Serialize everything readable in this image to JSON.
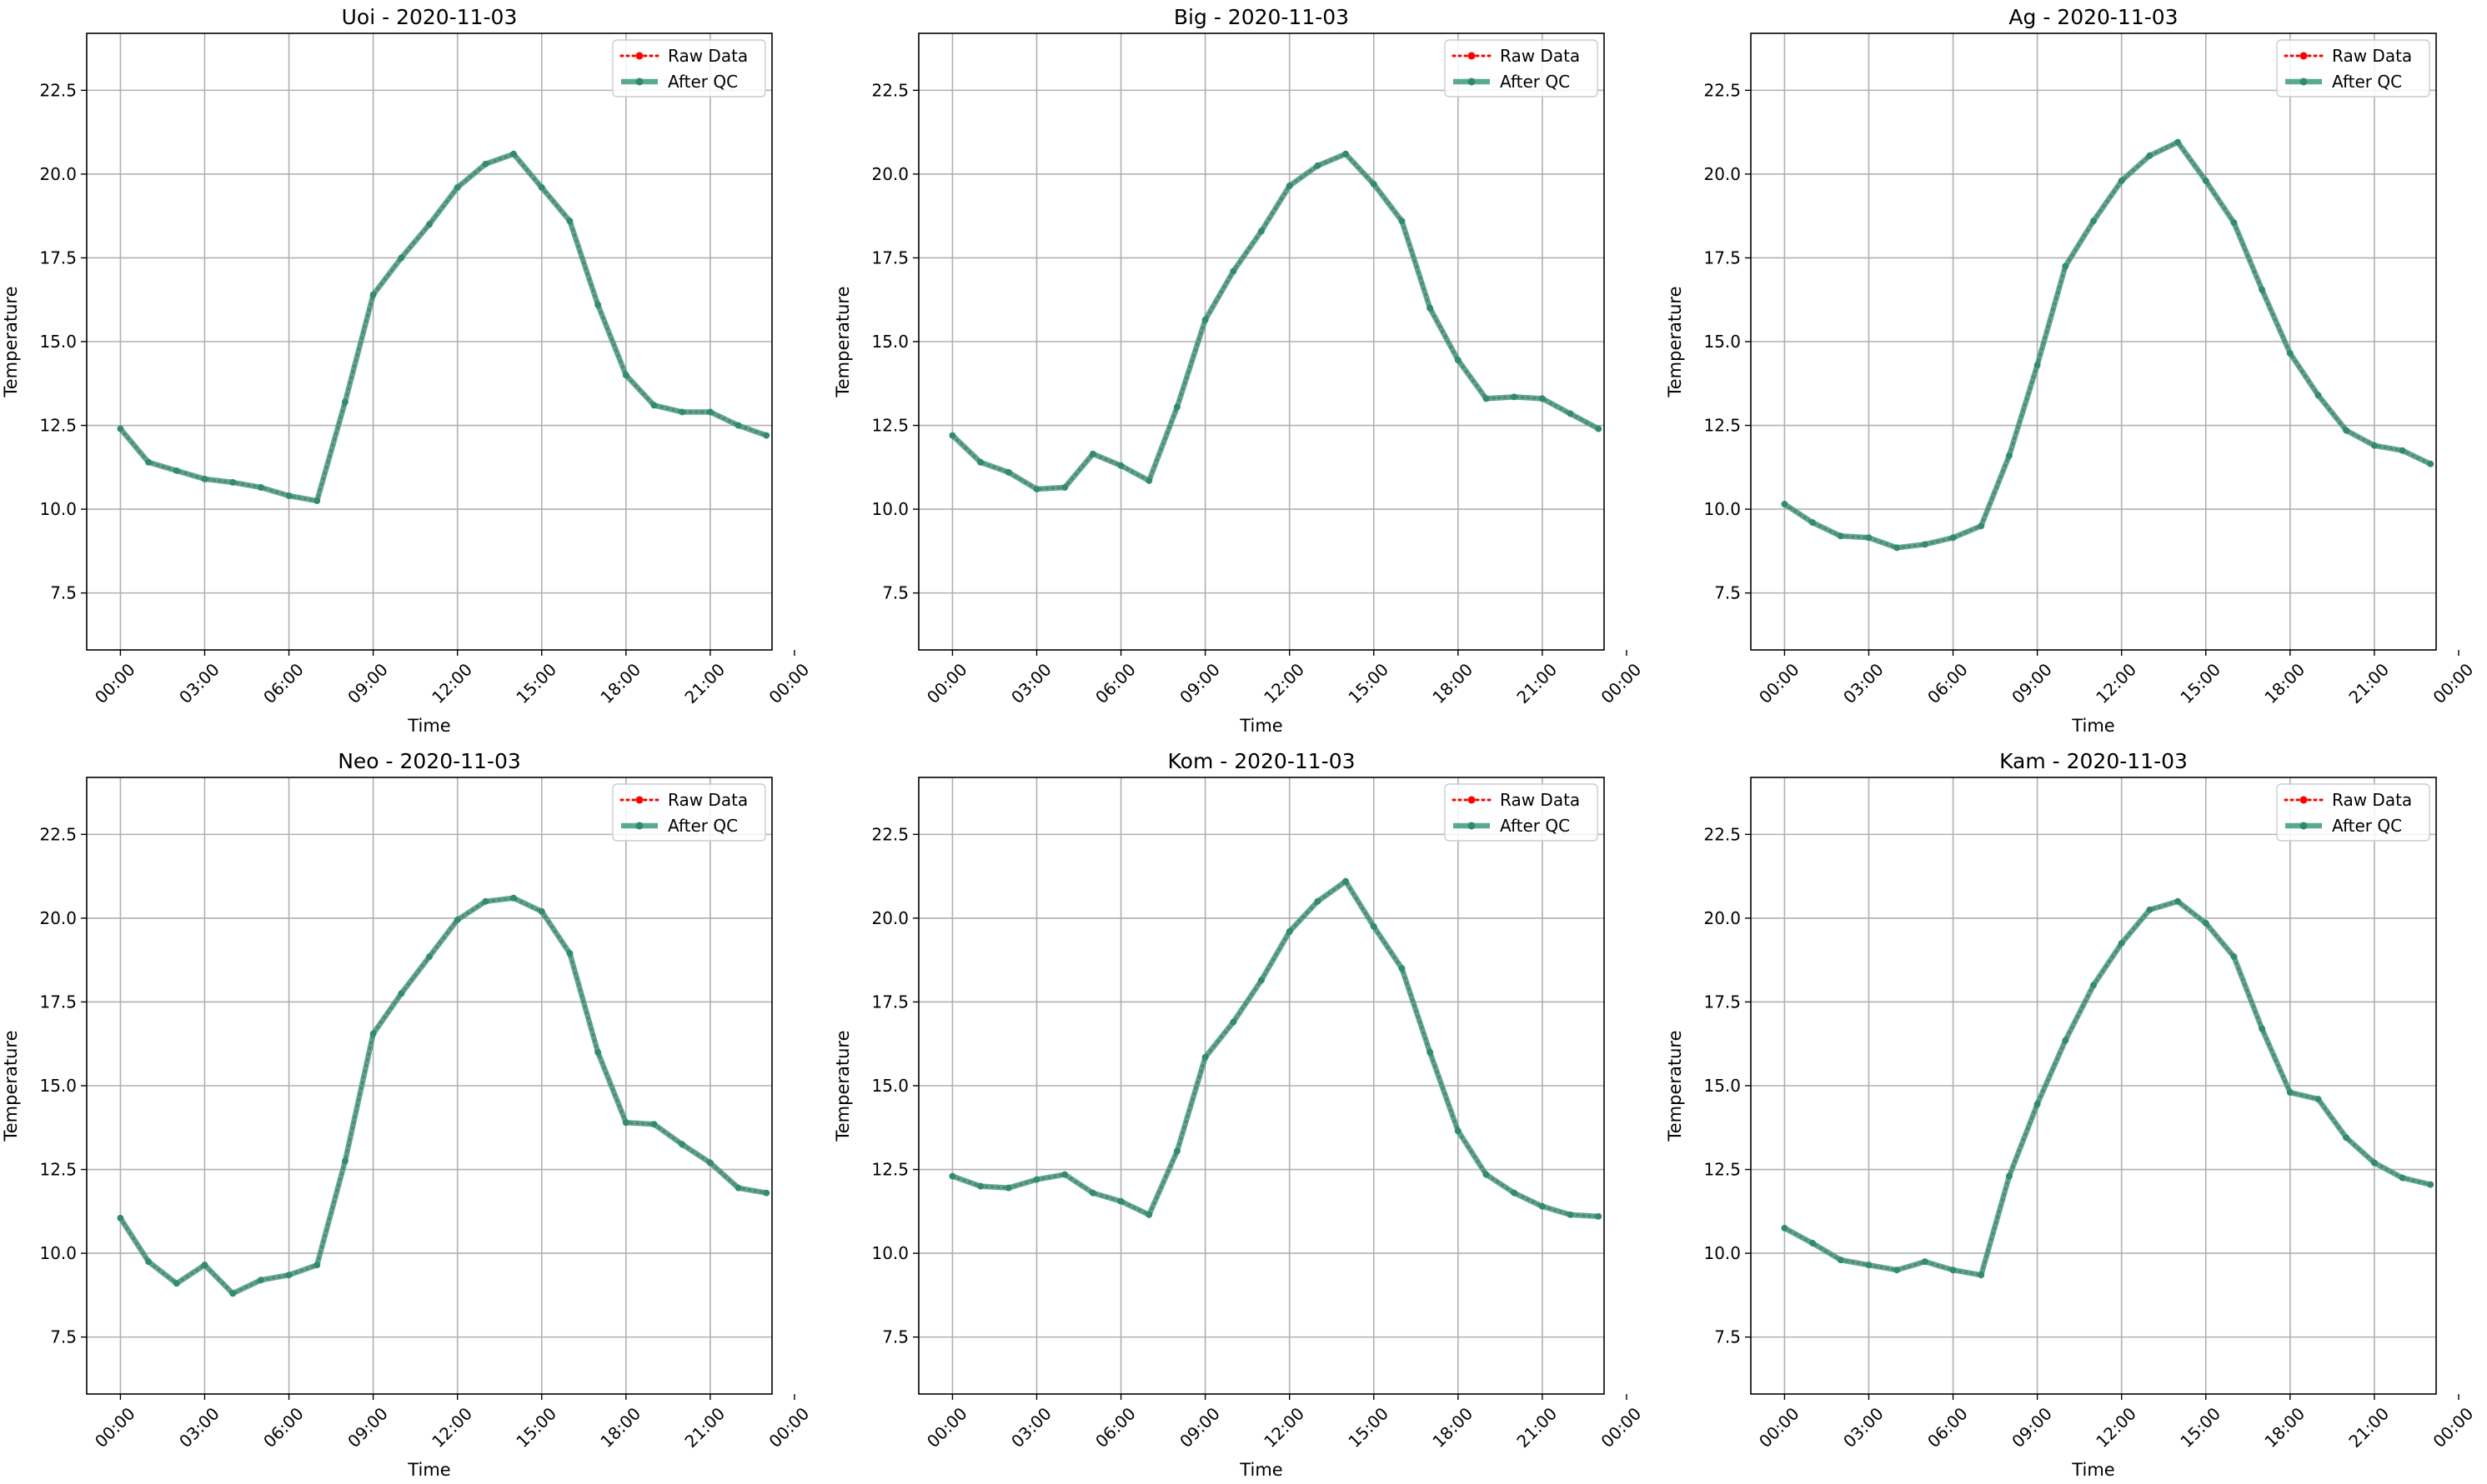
{
  "colors": {
    "raw": "#ff0000",
    "qc": "#2e8b72",
    "qc_line": "#3f9a7f",
    "grid": "#b0b0b0",
    "axis": "#000000"
  },
  "chart_data": [
    {
      "type": "line",
      "title": "Uoi - 2020-11-03",
      "xlabel": "Time",
      "ylabel": "Temperature",
      "ylim": [
        5.8,
        24.2
      ],
      "xlim": [
        -1.2,
        23.2
      ],
      "xticks": [
        0,
        3,
        6,
        9,
        12,
        15,
        18,
        21,
        24
      ],
      "xtick_labels": [
        "00:00",
        "03:00",
        "06:00",
        "09:00",
        "12:00",
        "15:00",
        "18:00",
        "21:00",
        "00:00"
      ],
      "yticks": [
        7.5,
        10.0,
        12.5,
        15.0,
        17.5,
        20.0,
        22.5
      ],
      "ytick_labels": [
        "7.5",
        "10.0",
        "12.5",
        "15.0",
        "17.5",
        "20.0",
        "22.5"
      ],
      "grid": true,
      "legend": "upper right",
      "x": [
        0,
        1,
        2,
        3,
        4,
        5,
        6,
        7,
        8,
        9,
        10,
        11,
        12,
        13,
        14,
        15,
        16,
        17,
        18,
        19,
        20,
        21,
        22,
        23
      ],
      "series": [
        {
          "name": "Raw Data",
          "style": "dotted",
          "values": [
            12.4,
            11.4,
            11.15,
            10.9,
            10.8,
            10.65,
            10.4,
            10.25,
            13.2,
            16.4,
            17.5,
            18.5,
            19.6,
            20.3,
            20.6,
            19.6,
            18.6,
            16.1,
            14.0,
            13.1,
            12.9,
            12.9,
            12.5,
            12.2
          ]
        },
        {
          "name": "After QC",
          "style": "solid",
          "values": [
            12.4,
            11.4,
            11.15,
            10.9,
            10.8,
            10.65,
            10.4,
            10.25,
            13.2,
            16.4,
            17.5,
            18.5,
            19.6,
            20.3,
            20.6,
            19.6,
            18.6,
            16.1,
            14.0,
            13.1,
            12.9,
            12.9,
            12.5,
            12.2
          ]
        }
      ]
    },
    {
      "type": "line",
      "title": "Big - 2020-11-03",
      "xlabel": "Time",
      "ylabel": "Temperature",
      "ylim": [
        5.8,
        24.2
      ],
      "xlim": [
        -1.2,
        23.2
      ],
      "xticks": [
        0,
        3,
        6,
        9,
        12,
        15,
        18,
        21,
        24
      ],
      "xtick_labels": [
        "00:00",
        "03:00",
        "06:00",
        "09:00",
        "12:00",
        "15:00",
        "18:00",
        "21:00",
        "00:00"
      ],
      "yticks": [
        7.5,
        10.0,
        12.5,
        15.0,
        17.5,
        20.0,
        22.5
      ],
      "ytick_labels": [
        "7.5",
        "10.0",
        "12.5",
        "15.0",
        "17.5",
        "20.0",
        "22.5"
      ],
      "grid": true,
      "legend": "upper right",
      "x": [
        0,
        1,
        2,
        3,
        4,
        5,
        6,
        7,
        8,
        9,
        10,
        11,
        12,
        13,
        14,
        15,
        16,
        17,
        18,
        19,
        20,
        21,
        22,
        23
      ],
      "series": [
        {
          "name": "Raw Data",
          "style": "dotted",
          "values": [
            12.2,
            11.4,
            11.1,
            10.6,
            10.65,
            11.65,
            11.3,
            10.85,
            13.05,
            15.65,
            17.1,
            18.3,
            19.65,
            20.25,
            20.6,
            19.7,
            18.6,
            16.0,
            14.45,
            13.3,
            13.35,
            13.3,
            12.85,
            12.4
          ]
        },
        {
          "name": "After QC",
          "style": "solid",
          "values": [
            12.2,
            11.4,
            11.1,
            10.6,
            10.65,
            11.65,
            11.3,
            10.85,
            13.05,
            15.65,
            17.1,
            18.3,
            19.65,
            20.25,
            20.6,
            19.7,
            18.6,
            16.0,
            14.45,
            13.3,
            13.35,
            13.3,
            12.85,
            12.4
          ]
        }
      ]
    },
    {
      "type": "line",
      "title": "Ag - 2020-11-03",
      "xlabel": "Time",
      "ylabel": "Temperature",
      "ylim": [
        5.8,
        24.2
      ],
      "xlim": [
        -1.2,
        23.2
      ],
      "xticks": [
        0,
        3,
        6,
        9,
        12,
        15,
        18,
        21,
        24
      ],
      "xtick_labels": [
        "00:00",
        "03:00",
        "06:00",
        "09:00",
        "12:00",
        "15:00",
        "18:00",
        "21:00",
        "00:00"
      ],
      "yticks": [
        7.5,
        10.0,
        12.5,
        15.0,
        17.5,
        20.0,
        22.5
      ],
      "ytick_labels": [
        "7.5",
        "10.0",
        "12.5",
        "15.0",
        "17.5",
        "20.0",
        "22.5"
      ],
      "grid": true,
      "legend": "upper right",
      "x": [
        0,
        1,
        2,
        3,
        4,
        5,
        6,
        7,
        8,
        9,
        10,
        11,
        12,
        13,
        14,
        15,
        16,
        17,
        18,
        19,
        20,
        21,
        22,
        23
      ],
      "series": [
        {
          "name": "Raw Data",
          "style": "dotted",
          "values": [
            10.15,
            9.6,
            9.2,
            9.15,
            8.85,
            8.95,
            9.15,
            9.5,
            11.6,
            14.3,
            17.25,
            18.6,
            19.8,
            20.55,
            20.95,
            19.8,
            18.55,
            16.55,
            14.65,
            13.4,
            12.35,
            11.9,
            11.75,
            11.35
          ]
        },
        {
          "name": "After QC",
          "style": "solid",
          "values": [
            10.15,
            9.6,
            9.2,
            9.15,
            8.85,
            8.95,
            9.15,
            9.5,
            11.6,
            14.3,
            17.25,
            18.6,
            19.8,
            20.55,
            20.95,
            19.8,
            18.55,
            16.55,
            14.65,
            13.4,
            12.35,
            11.9,
            11.75,
            11.35
          ]
        }
      ]
    },
    {
      "type": "line",
      "title": "Neo - 2020-11-03",
      "xlabel": "Time",
      "ylabel": "Temperature",
      "ylim": [
        5.8,
        24.2
      ],
      "xlim": [
        -1.2,
        23.2
      ],
      "xticks": [
        0,
        3,
        6,
        9,
        12,
        15,
        18,
        21,
        24
      ],
      "xtick_labels": [
        "00:00",
        "03:00",
        "06:00",
        "09:00",
        "12:00",
        "15:00",
        "18:00",
        "21:00",
        "00:00"
      ],
      "yticks": [
        7.5,
        10.0,
        12.5,
        15.0,
        17.5,
        20.0,
        22.5
      ],
      "ytick_labels": [
        "7.5",
        "10.0",
        "12.5",
        "15.0",
        "17.5",
        "20.0",
        "22.5"
      ],
      "grid": true,
      "legend": "upper right",
      "x": [
        0,
        1,
        2,
        3,
        4,
        5,
        6,
        7,
        8,
        9,
        10,
        11,
        12,
        13,
        14,
        15,
        16,
        17,
        18,
        19,
        20,
        21,
        22,
        23
      ],
      "series": [
        {
          "name": "Raw Data",
          "style": "dotted",
          "values": [
            11.05,
            9.75,
            9.1,
            9.65,
            8.8,
            9.2,
            9.35,
            9.65,
            12.75,
            16.55,
            17.75,
            18.85,
            19.95,
            20.5,
            20.6,
            20.2,
            18.95,
            16.0,
            13.9,
            13.85,
            13.25,
            12.7,
            11.95,
            11.8
          ]
        },
        {
          "name": "After QC",
          "style": "solid",
          "values": [
            11.05,
            9.75,
            9.1,
            9.65,
            8.8,
            9.2,
            9.35,
            9.65,
            12.75,
            16.55,
            17.75,
            18.85,
            19.95,
            20.5,
            20.6,
            20.2,
            18.95,
            16.0,
            13.9,
            13.85,
            13.25,
            12.7,
            11.95,
            11.8
          ]
        }
      ]
    },
    {
      "type": "line",
      "title": "Kom - 2020-11-03",
      "xlabel": "Time",
      "ylabel": "Temperature",
      "ylim": [
        5.8,
        24.2
      ],
      "xlim": [
        -1.2,
        23.2
      ],
      "xticks": [
        0,
        3,
        6,
        9,
        12,
        15,
        18,
        21,
        24
      ],
      "xtick_labels": [
        "00:00",
        "03:00",
        "06:00",
        "09:00",
        "12:00",
        "15:00",
        "18:00",
        "21:00",
        "00:00"
      ],
      "yticks": [
        7.5,
        10.0,
        12.5,
        15.0,
        17.5,
        20.0,
        22.5
      ],
      "ytick_labels": [
        "7.5",
        "10.0",
        "12.5",
        "15.0",
        "17.5",
        "20.0",
        "22.5"
      ],
      "grid": true,
      "legend": "upper right",
      "x": [
        0,
        1,
        2,
        3,
        4,
        5,
        6,
        7,
        8,
        9,
        10,
        11,
        12,
        13,
        14,
        15,
        16,
        17,
        18,
        19,
        20,
        21,
        22,
        23
      ],
      "series": [
        {
          "name": "Raw Data",
          "style": "dotted",
          "values": [
            12.3,
            12.0,
            11.95,
            12.2,
            12.35,
            11.8,
            11.55,
            11.15,
            13.05,
            15.85,
            16.9,
            18.15,
            19.6,
            20.5,
            21.1,
            19.75,
            18.5,
            16.0,
            13.65,
            12.35,
            11.8,
            11.4,
            11.15,
            11.1
          ]
        },
        {
          "name": "After QC",
          "style": "solid",
          "values": [
            12.3,
            12.0,
            11.95,
            12.2,
            12.35,
            11.8,
            11.55,
            11.15,
            13.05,
            15.85,
            16.9,
            18.15,
            19.6,
            20.5,
            21.1,
            19.75,
            18.5,
            16.0,
            13.65,
            12.35,
            11.8,
            11.4,
            11.15,
            11.1
          ]
        }
      ]
    },
    {
      "type": "line",
      "title": "Kam - 2020-11-03",
      "xlabel": "Time",
      "ylabel": "Temperature",
      "ylim": [
        5.8,
        24.2
      ],
      "xlim": [
        -1.2,
        23.2
      ],
      "xticks": [
        0,
        3,
        6,
        9,
        12,
        15,
        18,
        21,
        24
      ],
      "xtick_labels": [
        "00:00",
        "03:00",
        "06:00",
        "09:00",
        "12:00",
        "15:00",
        "18:00",
        "21:00",
        "00:00"
      ],
      "yticks": [
        7.5,
        10.0,
        12.5,
        15.0,
        17.5,
        20.0,
        22.5
      ],
      "ytick_labels": [
        "7.5",
        "10.0",
        "12.5",
        "15.0",
        "17.5",
        "20.0",
        "22.5"
      ],
      "grid": true,
      "legend": "upper right",
      "x": [
        0,
        1,
        2,
        3,
        4,
        5,
        6,
        7,
        8,
        9,
        10,
        11,
        12,
        13,
        14,
        15,
        16,
        17,
        18,
        19,
        20,
        21,
        22,
        23
      ],
      "series": [
        {
          "name": "Raw Data",
          "style": "dotted",
          "values": [
            10.75,
            10.3,
            9.8,
            9.65,
            9.5,
            9.75,
            9.5,
            9.35,
            12.3,
            14.45,
            16.35,
            18.0,
            19.25,
            20.25,
            20.5,
            19.85,
            18.85,
            16.7,
            14.8,
            14.6,
            13.45,
            12.7,
            12.25,
            12.05
          ]
        },
        {
          "name": "After QC",
          "style": "solid",
          "values": [
            10.75,
            10.3,
            9.8,
            9.65,
            9.5,
            9.75,
            9.5,
            9.35,
            12.3,
            14.45,
            16.35,
            18.0,
            19.25,
            20.25,
            20.5,
            19.85,
            18.85,
            16.7,
            14.8,
            14.6,
            13.45,
            12.7,
            12.25,
            12.05
          ]
        }
      ]
    }
  ]
}
